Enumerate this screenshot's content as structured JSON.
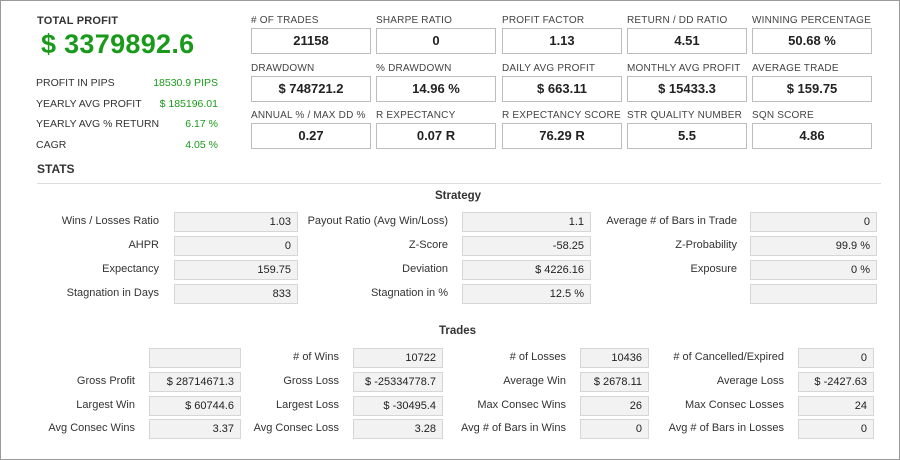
{
  "total_profit": {
    "label": "TOTAL PROFIT",
    "value": "$ 3379892.6"
  },
  "summary": [
    {
      "label": "PROFIT IN PIPS",
      "value": "18530.9 PIPS"
    },
    {
      "label": "YEARLY AVG PROFIT",
      "value": "$ 185196.01"
    },
    {
      "label": "YEARLY AVG % RETURN",
      "value": "6.17 %"
    },
    {
      "label": "CAGR",
      "value": "4.05 %"
    }
  ],
  "metrics": [
    {
      "label": "# OF TRADES",
      "value": "21158"
    },
    {
      "label": "SHARPE RATIO",
      "value": "0"
    },
    {
      "label": "PROFIT FACTOR",
      "value": "1.13"
    },
    {
      "label": "RETURN / DD RATIO",
      "value": "4.51"
    },
    {
      "label": "WINNING PERCENTAGE",
      "value": "50.68 %"
    },
    {
      "label": "DRAWDOWN",
      "value": "$ 748721.2"
    },
    {
      "label": "% DRAWDOWN",
      "value": "14.96 %"
    },
    {
      "label": "DAILY AVG PROFIT",
      "value": "$ 663.11"
    },
    {
      "label": "MONTHLY AVG PROFIT",
      "value": "$ 15433.3"
    },
    {
      "label": "AVERAGE TRADE",
      "value": "$ 159.75"
    },
    {
      "label": "ANNUAL % / MAX DD %",
      "value": "0.27"
    },
    {
      "label": "R EXPECTANCY",
      "value": "0.07 R"
    },
    {
      "label": "R EXPECTANCY SCORE",
      "value": "76.29 R"
    },
    {
      "label": "STR QUALITY NUMBER",
      "value": "5.5"
    },
    {
      "label": "SQN SCORE",
      "value": "4.86"
    }
  ],
  "stats_title": "STATS",
  "strategy": {
    "title": "Strategy",
    "rows": [
      [
        {
          "label": "Wins / Losses Ratio",
          "value": "1.03"
        },
        {
          "label": "Payout Ratio (Avg Win/Loss)",
          "value": "1.1"
        },
        {
          "label": "Average # of Bars in Trade",
          "value": "0"
        }
      ],
      [
        {
          "label": "AHPR",
          "value": "0"
        },
        {
          "label": "Z-Score",
          "value": "-58.25"
        },
        {
          "label": "Z-Probability",
          "value": "99.9 %"
        }
      ],
      [
        {
          "label": "Expectancy",
          "value": "159.75"
        },
        {
          "label": "Deviation",
          "value": "$ 4226.16"
        },
        {
          "label": "Exposure",
          "value": "0 %"
        }
      ],
      [
        {
          "label": "Stagnation in Days",
          "value": "833"
        },
        {
          "label": "Stagnation in %",
          "value": "12.5 %"
        },
        {
          "label": "",
          "value": ""
        }
      ]
    ]
  },
  "trades": {
    "title": "Trades",
    "rows": [
      [
        {
          "label": "",
          "value": ""
        },
        {
          "label": "# of Wins",
          "value": "10722"
        },
        {
          "label": "# of Losses",
          "value": "10436"
        },
        {
          "label": "# of Cancelled/Expired",
          "value": "0"
        }
      ],
      [
        {
          "label": "Gross Profit",
          "value": "$ 28714671.3"
        },
        {
          "label": "Gross Loss",
          "value": "$ -25334778.7"
        },
        {
          "label": "Average Win",
          "value": "$ 2678.11"
        },
        {
          "label": "Average Loss",
          "value": "$ -2427.63"
        }
      ],
      [
        {
          "label": "Largest Win",
          "value": "$ 60744.6"
        },
        {
          "label": "Largest Loss",
          "value": "$ -30495.4"
        },
        {
          "label": "Max Consec Wins",
          "value": "26"
        },
        {
          "label": "Max Consec Losses",
          "value": "24"
        }
      ],
      [
        {
          "label": "Avg Consec Wins",
          "value": "3.37"
        },
        {
          "label": "Avg Consec Loss",
          "value": "3.28"
        },
        {
          "label": "Avg # of Bars in Wins",
          "value": "0"
        },
        {
          "label": "Avg # of Bars in Losses",
          "value": "0"
        }
      ]
    ]
  },
  "colors": {
    "profit_green": "#1a9a1a"
  }
}
